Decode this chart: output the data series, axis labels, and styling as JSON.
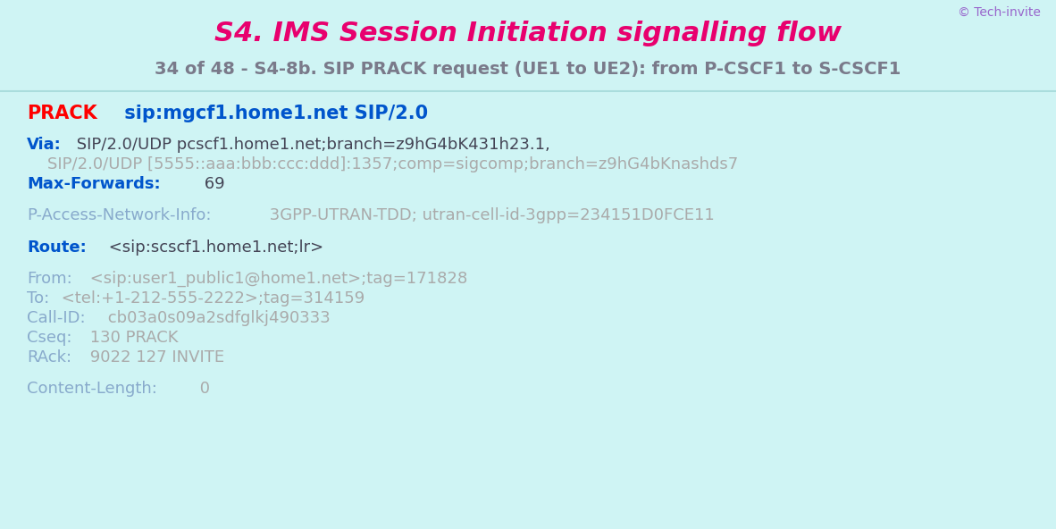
{
  "bg_color": "#cff4f4",
  "title": "S4. IMS Session Initiation signalling flow",
  "title_color": "#e8006e",
  "subtitle": "34 of 48 - S4-8b. SIP PRACK request (UE1 to UE2): from P-CSCF1 to S-CSCF1",
  "subtitle_color": "#7a7a8a",
  "copyright": "© Tech-invite",
  "copyright_color": "#9966cc",
  "header_bg": "#cff4f4",
  "lines": [
    {
      "parts": [
        {
          "text": "PRACK",
          "color": "#ff0000",
          "bold": true,
          "size": 15
        },
        {
          "text": " sip:mgcf1.home1.net SIP/2.0",
          "color": "#0055cc",
          "bold": true,
          "size": 15
        }
      ]
    },
    {
      "parts": []
    },
    {
      "parts": [
        {
          "text": "Via:",
          "color": "#0055cc",
          "bold": true,
          "size": 13
        },
        {
          "text": " SIP/2.0/UDP pcscf1.home1.net;branch=z9hG4bK431h23.1,",
          "color": "#444455",
          "bold": false,
          "size": 13
        }
      ]
    },
    {
      "parts": [
        {
          "text": "    SIP/2.0/UDP [5555::aaa:bbb:ccc:ddd]:1357;comp=sigcomp;branch=z9hG4bKnashds7",
          "color": "#aaaaaa",
          "bold": false,
          "size": 13
        }
      ]
    },
    {
      "parts": [
        {
          "text": "Max-Forwards:",
          "color": "#0055cc",
          "bold": true,
          "size": 13
        },
        {
          "text": " 69",
          "color": "#444455",
          "bold": false,
          "size": 13
        }
      ]
    },
    {
      "parts": []
    },
    {
      "parts": [
        {
          "text": "P-Access-Network-Info:",
          "color": "#88aacc",
          "bold": false,
          "size": 13
        },
        {
          "text": " 3GPP-UTRAN-TDD; utran-cell-id-3gpp=234151D0FCE11",
          "color": "#aaaaaa",
          "bold": false,
          "size": 13
        }
      ]
    },
    {
      "parts": []
    },
    {
      "parts": [
        {
          "text": "Route:",
          "color": "#0055cc",
          "bold": true,
          "size": 13
        },
        {
          "text": " <sip:scscf1.home1.net;lr>",
          "color": "#444455",
          "bold": false,
          "size": 13
        }
      ]
    },
    {
      "parts": []
    },
    {
      "parts": [
        {
          "text": "From:",
          "color": "#88aacc",
          "bold": false,
          "size": 13
        },
        {
          "text": " <sip:user1_public1@home1.net>;tag=171828",
          "color": "#aaaaaa",
          "bold": false,
          "size": 13
        }
      ]
    },
    {
      "parts": [
        {
          "text": "To:",
          "color": "#88aacc",
          "bold": false,
          "size": 13
        },
        {
          "text": " <tel:+1-212-555-2222>;tag=314159",
          "color": "#aaaaaa",
          "bold": false,
          "size": 13
        }
      ]
    },
    {
      "parts": [
        {
          "text": "Call-ID:",
          "color": "#88aacc",
          "bold": false,
          "size": 13
        },
        {
          "text": " cb03a0s09a2sdfglkj490333",
          "color": "#aaaaaa",
          "bold": false,
          "size": 13
        }
      ]
    },
    {
      "parts": [
        {
          "text": "Cseq:",
          "color": "#88aacc",
          "bold": false,
          "size": 13
        },
        {
          "text": " 130 PRACK",
          "color": "#aaaaaa",
          "bold": false,
          "size": 13
        }
      ]
    },
    {
      "parts": [
        {
          "text": "RAck:",
          "color": "#88aacc",
          "bold": false,
          "size": 13
        },
        {
          "text": " 9022 127 INVITE",
          "color": "#aaaaaa",
          "bold": false,
          "size": 13
        }
      ]
    },
    {
      "parts": []
    },
    {
      "parts": [
        {
          "text": "Content-Length:",
          "color": "#88aacc",
          "bold": false,
          "size": 13
        },
        {
          "text": " 0",
          "color": "#aaaaaa",
          "bold": false,
          "size": 13
        }
      ]
    }
  ]
}
